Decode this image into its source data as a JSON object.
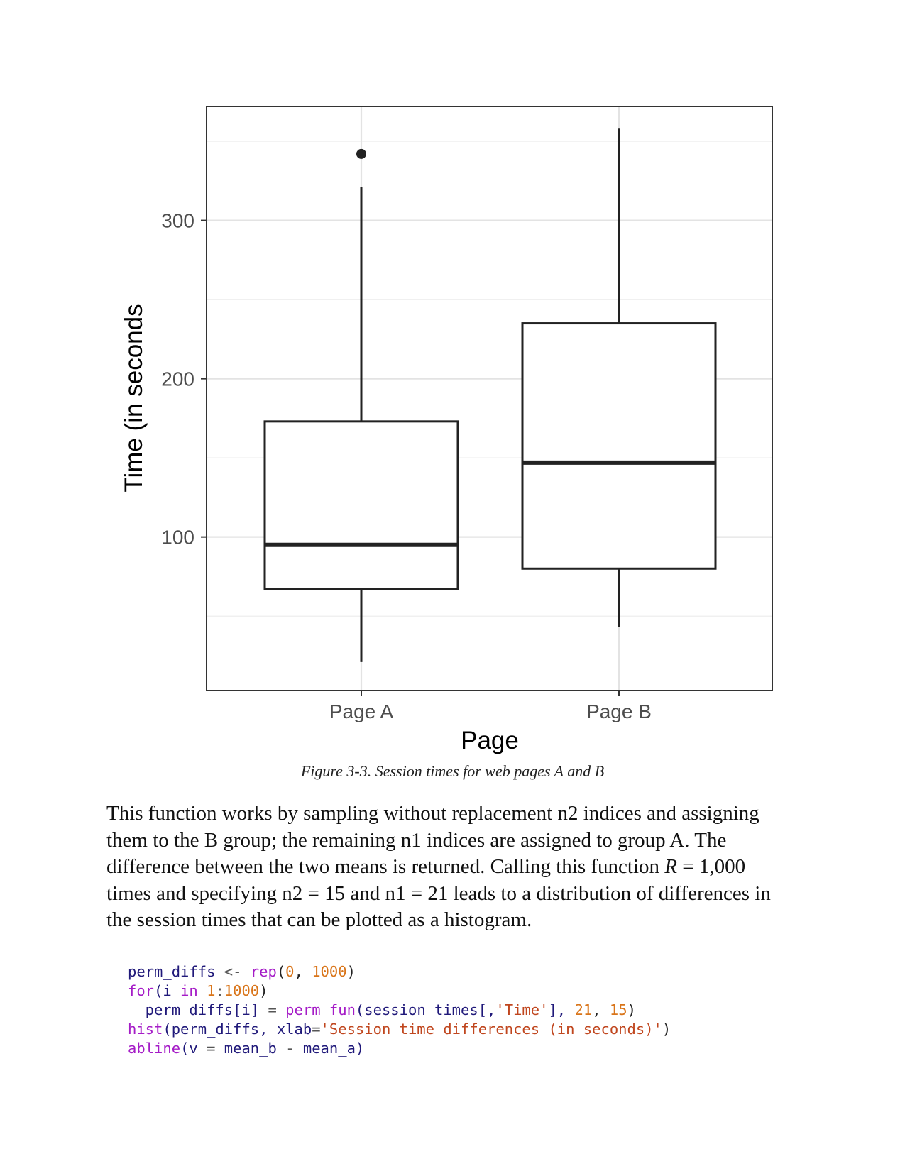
{
  "chart_data": {
    "type": "boxplot",
    "categories": [
      "Page A",
      "Page B"
    ],
    "xlabel": "Page",
    "ylabel": "Time (in seconds",
    "yticks": [
      100,
      200,
      300
    ],
    "ylim": [
      3,
      372
    ],
    "grid": true,
    "boxes": [
      {
        "category": "Page A",
        "lower_whisker": 21,
        "q1": 67,
        "median": 95,
        "q3": 173,
        "upper_whisker": 321,
        "outliers": [
          342
        ]
      },
      {
        "category": "Page B",
        "lower_whisker": 43,
        "q1": 80,
        "median": 147,
        "q3": 235,
        "upper_whisker": 358,
        "outliers": []
      }
    ]
  },
  "caption": "Figure 3-3. Session times for web pages A and B",
  "paragraph": {
    "line1": "This function works by sampling without replacement n2 indices and assigning",
    "line2": "them to the B group; the remaining n1 indices are assigned to group A. The",
    "line3a": "difference between the two means is returned. Calling this function ",
    "line3_var": "R",
    "line3b": " = 1,000",
    "line4": "times and specifying n2 = 15 and n1 = 21 leads to a distribution of differences in",
    "line5": "the session times that can be plotted as a histogram."
  },
  "code": {
    "l1_a": "perm_diffs",
    "l1_b": " <- ",
    "l1_c": "rep",
    "l1_d": "(",
    "l1_e": "0",
    "l1_f": ", ",
    "l1_g": "1000",
    "l1_h": ")",
    "l2_a": "for",
    "l2_b": "(i ",
    "l2_c": "in",
    "l2_d": " ",
    "l2_e": "1",
    "l2_f": ":",
    "l2_g": "1000",
    "l2_h": ")",
    "l3_a": "  perm_diffs[i] ",
    "l3_b": "=",
    "l3_c": " ",
    "l3_d": "perm_fun",
    "l3_e": "(session_times[,",
    "l3_f": "'Time'",
    "l3_g": "], ",
    "l3_h": "21",
    "l3_i": ", ",
    "l3_j": "15",
    "l3_k": ")",
    "l4_a": "hist",
    "l4_b": "(perm_diffs, xlab",
    "l4_c": "=",
    "l4_d": "'Session time differences (in seconds)'",
    "l4_e": ")",
    "l5_a": "abline",
    "l5_b": "(v ",
    "l5_c": "=",
    "l5_d": " mean_b ",
    "l5_e": "-",
    "l5_f": " mean_a)"
  }
}
